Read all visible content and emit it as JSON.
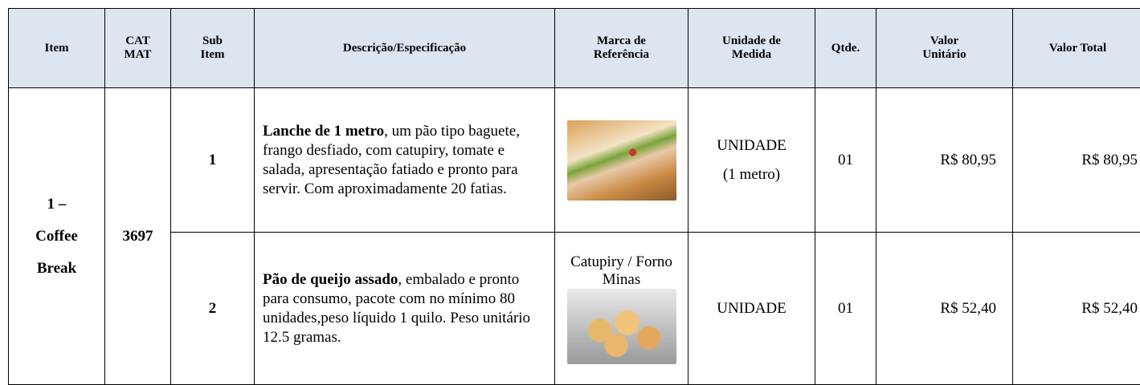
{
  "table": {
    "headers": [
      "Item",
      "CAT MAT",
      "Sub Item",
      "Descrição/Especificação",
      "Marca de Referência",
      "Unidade de Medida",
      "Qtde.",
      "Valor Unitário",
      "Valor Total"
    ],
    "item": "1 – Coffee Break",
    "catmat": "3697",
    "rows": [
      {
        "sub": "1",
        "description": {
          "bold": "Lanche de 1 metro",
          "text": ", um pão tipo baguete, frango desfiado, com catupiry, tomate e salada, apresentação fatiado e pronto para servir. Com aproximadamente 20 fatias."
        },
        "unit": [
          "UNIDADE",
          "(1 metro)"
        ],
        "qty": "01",
        "unit_price": "R$ 80,95",
        "total": "R$ 80,95"
      },
      {
        "sub": "2",
        "description": {
          "bold": "Pão de queijo assado",
          "text": ", embalado e pronto para consumo, pacote com no mínimo 80 unidades,peso líquido 1 quilo. Peso unitário 12.5 gramas."
        },
        "brand": "Catupiry / Forno Minas",
        "unit": [
          "UNIDADE"
        ],
        "qty": "01",
        "unit_price": "R$ 52,40",
        "total": "R$ 52,40"
      }
    ]
  }
}
